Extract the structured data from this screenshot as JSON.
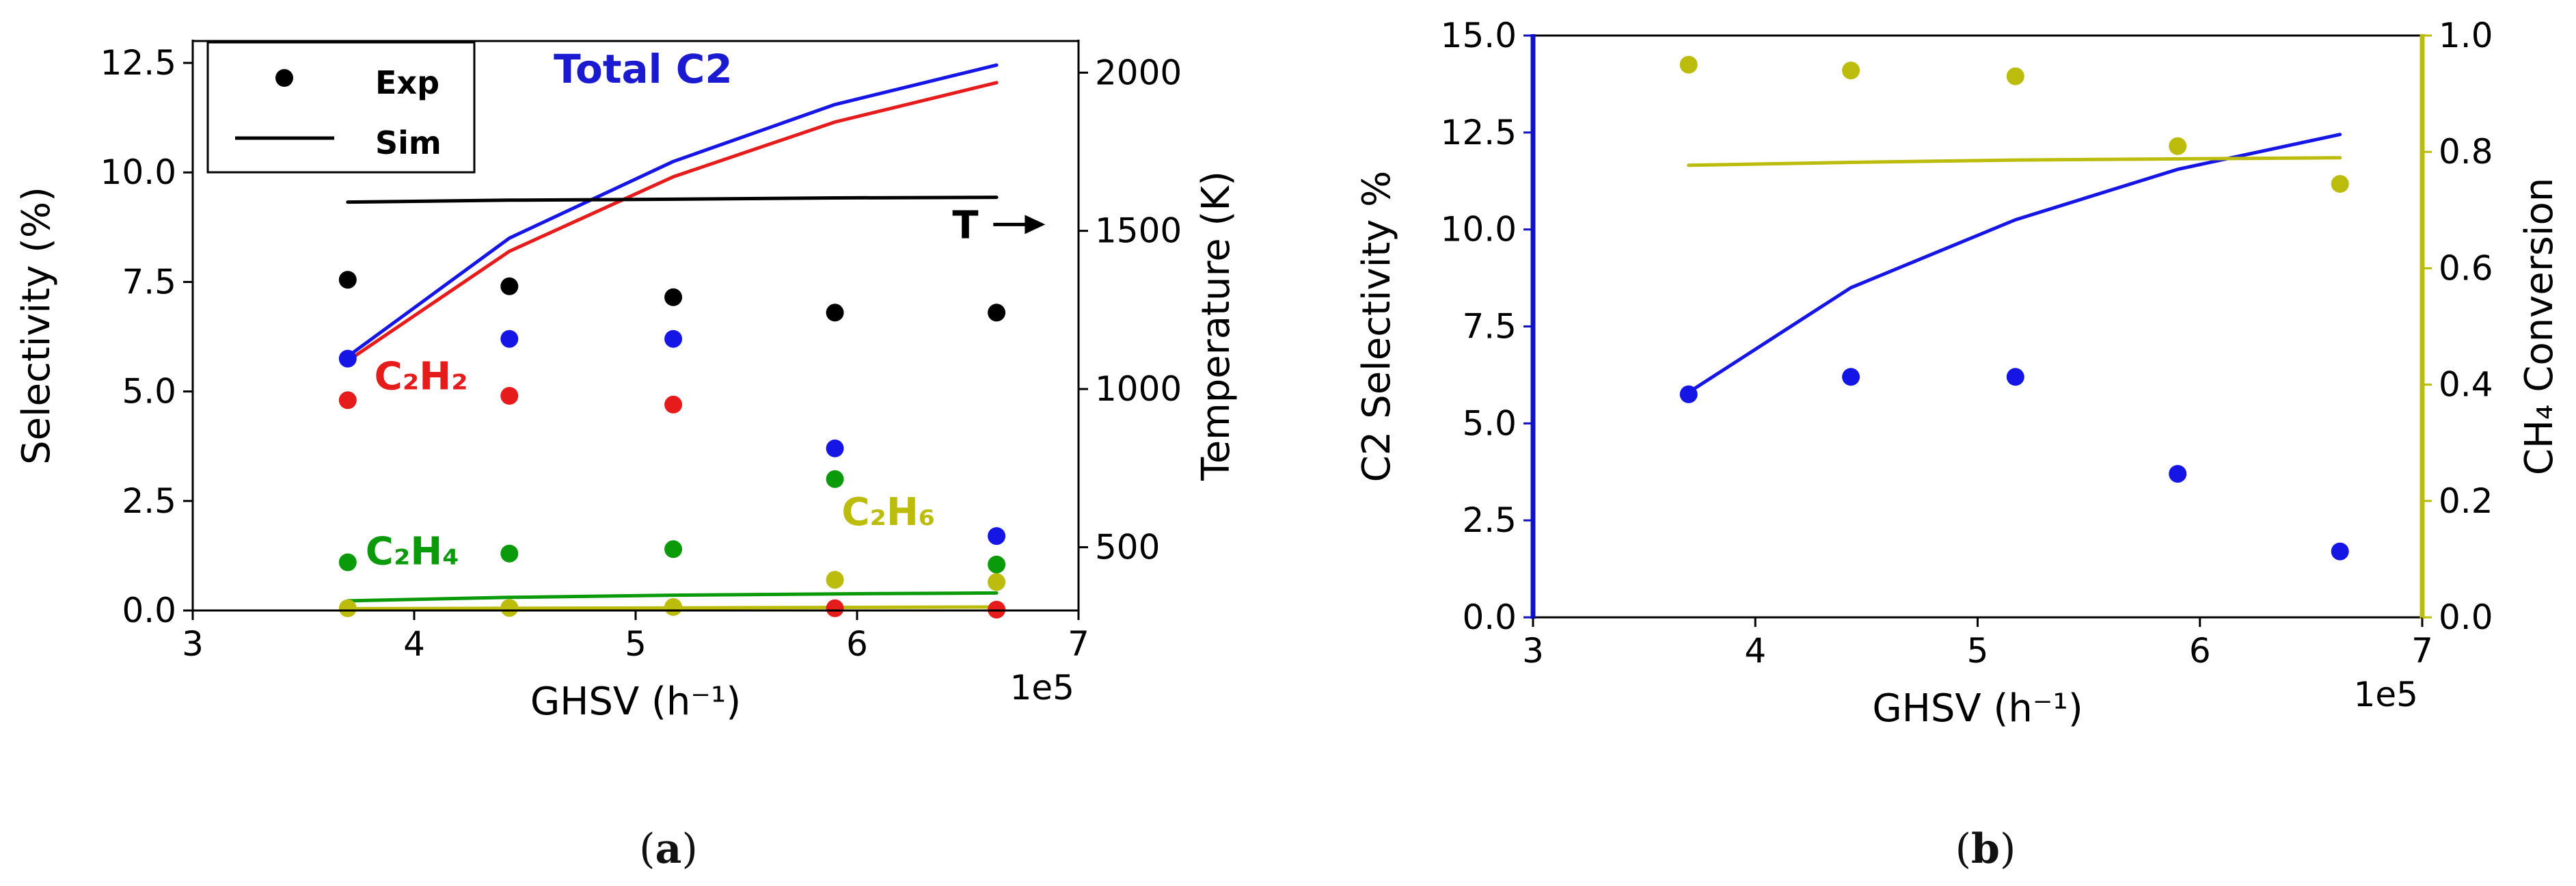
{
  "chart_data": [
    {
      "id": "a",
      "type": "scatter+line",
      "caption": "a",
      "xlabel": "GHSV (h⁻¹)",
      "x_offset_label": "1e5",
      "ylabel": "Selectivity (%)",
      "ylabel_right": "Temperature (K)",
      "xlim": [
        3,
        7
      ],
      "ylim": [
        0,
        13
      ],
      "ylim_right": [
        300,
        2100
      ],
      "xticks": [
        3,
        4,
        5,
        6,
        7
      ],
      "xtick_labels": [
        "3",
        "4",
        "5",
        "6",
        "7"
      ],
      "yticks": [
        0.0,
        2.5,
        5.0,
        7.5,
        10.0,
        12.5
      ],
      "ytick_labels": [
        "0.0",
        "2.5",
        "5.0",
        "7.5",
        "10.0",
        "12.5"
      ],
      "yticks_right": [
        500,
        1000,
        1500,
        2000
      ],
      "ytick_labels_right": [
        "500",
        "1000",
        "1500",
        "2000"
      ],
      "legend": {
        "placement": "top-left",
        "entries": [
          {
            "label": "Exp",
            "marker": "dot"
          },
          {
            "label": "Sim",
            "marker": "line"
          }
        ]
      },
      "x": [
        3.7,
        4.43,
        5.17,
        5.9,
        6.63
      ],
      "lines": [
        {
          "name": "Total C2 (Sim)",
          "color": "#1515e6",
          "y": [
            5.8,
            8.5,
            10.25,
            11.55,
            12.45
          ]
        },
        {
          "name": "C2H2 (Sim)",
          "color": "#e61b1b",
          "y": [
            5.7,
            8.2,
            9.9,
            11.15,
            12.05
          ]
        },
        {
          "name": "T (Sim)",
          "color": "#000000",
          "axis": "right",
          "y": [
            1591,
            1597,
            1600,
            1604,
            1606
          ]
        },
        {
          "name": "C2H4 (Sim)",
          "color": "#0a9a0a",
          "y": [
            0.22,
            0.3,
            0.35,
            0.38,
            0.4
          ]
        },
        {
          "name": "C2H6 (Sim)",
          "color": "#bcbc0c",
          "y": [
            0.04,
            0.05,
            0.06,
            0.07,
            0.08
          ]
        }
      ],
      "scatter": [
        {
          "name": "T (Exp)",
          "color": "#000000",
          "y": [
            7.55,
            7.4,
            7.15,
            6.8,
            6.8
          ]
        },
        {
          "name": "Total C2 (Exp)",
          "color": "#1515e6",
          "y": [
            5.75,
            6.2,
            6.2,
            3.7,
            1.7
          ]
        },
        {
          "name": "C2H2 (Exp)",
          "color": "#e61b1b",
          "y": [
            4.8,
            4.9,
            4.7,
            0.05,
            0.02
          ]
        },
        {
          "name": "C2H4 (Exp)",
          "color": "#0a9a0a",
          "y": [
            1.1,
            1.3,
            1.4,
            3.0,
            1.05
          ]
        },
        {
          "name": "C2H6 (Exp)",
          "color": "#bcbc0c",
          "y": [
            0.05,
            0.06,
            0.08,
            0.7,
            0.65
          ]
        }
      ],
      "annotations": [
        {
          "id": "total-c2",
          "text": "Total C2",
          "color": "#1a1ad0",
          "x": 4.63,
          "y": 12.05,
          "bold": true
        },
        {
          "id": "c2h2",
          "text": "C₂H₂",
          "color": "#e61b1b",
          "x": 3.82,
          "y": 5.05
        },
        {
          "id": "c2h4",
          "text": "C₂H₄",
          "color": "#0a9a0a",
          "x": 3.78,
          "y": 1.05
        },
        {
          "id": "c2h6",
          "text": "C₂H₆",
          "color": "#bcbc0c",
          "x": 5.93,
          "y": 1.95
        },
        {
          "id": "t-arrow",
          "text": "T",
          "color": "#000000",
          "x": 6.43,
          "y": 8.5,
          "arrow_to_x": 6.85
        }
      ]
    },
    {
      "id": "b",
      "type": "scatter+line",
      "caption": "b",
      "xlabel": "GHSV (h⁻¹)",
      "x_offset_label": "1e5",
      "ylabel": "C2 Selectivity %",
      "ylabel_right": "CH₄ Conversion",
      "xlim": [
        3,
        7
      ],
      "ylim": [
        0,
        15
      ],
      "ylim_right": [
        0,
        1
      ],
      "xticks": [
        3,
        4,
        5,
        6,
        7
      ],
      "xtick_labels": [
        "3",
        "4",
        "5",
        "6",
        "7"
      ],
      "yticks": [
        0.0,
        2.5,
        5.0,
        7.5,
        10.0,
        12.5,
        15.0
      ],
      "ytick_labels": [
        "0.0",
        "2.5",
        "5.0",
        "7.5",
        "10.0",
        "12.5",
        "15.0"
      ],
      "yticks_right": [
        0.0,
        0.2,
        0.4,
        0.6,
        0.8,
        1.0
      ],
      "ytick_labels_right": [
        "0.0",
        "0.2",
        "0.4",
        "0.6",
        "0.8",
        "1.0"
      ],
      "left_axis_color": "#1010c8",
      "right_axis_color": "#bcbc0c",
      "x": [
        3.7,
        4.43,
        5.17,
        5.9,
        6.63
      ],
      "lines": [
        {
          "name": "C2 Selectivity (Sim)",
          "color": "#1515e6",
          "y": [
            5.8,
            8.5,
            10.25,
            11.55,
            12.45
          ]
        },
        {
          "name": "CH4 Conversion (Sim)",
          "color": "#bcbc0c",
          "axis": "right",
          "y": [
            0.777,
            0.782,
            0.786,
            0.788,
            0.79
          ]
        }
      ],
      "scatter": [
        {
          "name": "C2 Selectivity (Exp)",
          "color": "#1515e6",
          "y": [
            5.75,
            6.2,
            6.2,
            3.7,
            1.7
          ]
        },
        {
          "name": "CH4 Conversion (Exp)",
          "color": "#bcbc0c",
          "axis": "right",
          "y": [
            0.95,
            0.94,
            0.93,
            0.81,
            0.745
          ]
        }
      ],
      "annotations": []
    }
  ]
}
